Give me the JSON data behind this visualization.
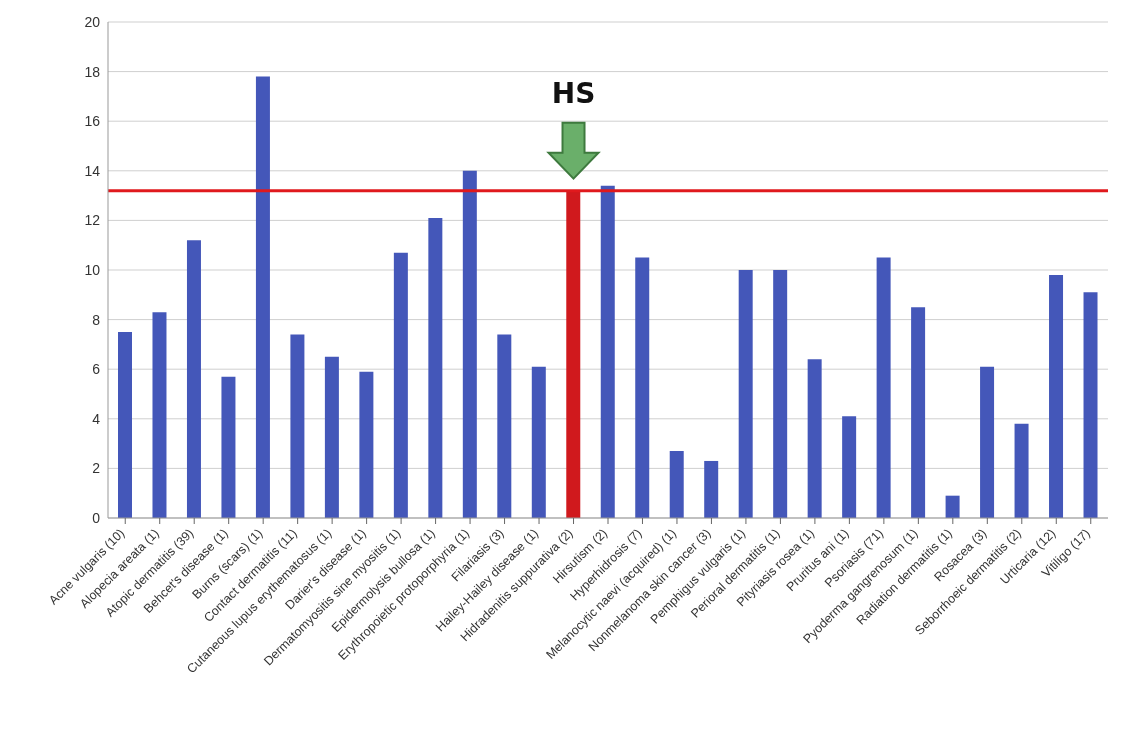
{
  "chart_data": {
    "type": "bar",
    "categories": [
      "Acne vulgaris (10)",
      "Alopecia areata (1)",
      "Atopic dermatitis (39)",
      "Behcet's disease (1)",
      "Burns (scars) (1)",
      "Contact dermatitis (11)",
      "Cutaneous lupus erythematosus (1)",
      "Darier's disease (1)",
      "Dermatomyositis sine myositis (1)",
      "Epidermolysis bullosa (1)",
      "Erythropoietic protoporphyria (1)",
      "Filariasis (3)",
      "Hailey-Hailey disease (1)",
      "Hidradenitis suppurativa (2)",
      "Hirsutism (2)",
      "Hyperhidrosis (7)",
      "Melanocytic naevi (acquired) (1)",
      "Nonmelanoma skin cancer (3)",
      "Pemphigus vulgaris (1)",
      "Perioral dermatitis (1)",
      "Pityriasis rosea (1)",
      "Pruritus ani (1)",
      "Psoriasis (71)",
      "Pyoderma gangrenosum (1)",
      "Radiation dermatitis (1)",
      "Rosacea (3)",
      "Seborrhoeic dermatitis (2)",
      "Urticaria (12)",
      "Vitiligo (17)"
    ],
    "values": [
      7.5,
      8.3,
      11.2,
      5.7,
      17.8,
      7.4,
      6.5,
      5.9,
      10.7,
      12.1,
      14.0,
      7.4,
      6.1,
      13.2,
      13.4,
      10.5,
      2.7,
      2.3,
      10.0,
      10.0,
      6.4,
      4.1,
      10.5,
      8.5,
      0.9,
      6.1,
      3.8,
      9.8,
      9.1
    ],
    "colors": [
      "#4457b9",
      "#4457b9",
      "#4457b9",
      "#4457b9",
      "#4457b9",
      "#4457b9",
      "#4457b9",
      "#4457b9",
      "#4457b9",
      "#4457b9",
      "#4457b9",
      "#4457b9",
      "#4457b9",
      "#d0191d",
      "#4457b9",
      "#4457b9",
      "#4457b9",
      "#4457b9",
      "#4457b9",
      "#4457b9",
      "#4457b9",
      "#4457b9",
      "#4457b9",
      "#4457b9",
      "#4457b9",
      "#4457b9",
      "#4457b9",
      "#4457b9",
      "#4457b9"
    ],
    "ylim": [
      0,
      20
    ],
    "yticks": [
      0,
      2,
      4,
      6,
      8,
      10,
      12,
      14,
      16,
      18,
      20
    ],
    "grid": "y",
    "ref_lines": [
      {
        "axis": "y",
        "value": 13.2,
        "color": "#e0191d"
      }
    ],
    "annotations": [
      {
        "text": "HS",
        "x": "Hidradenitis suppurativa (2)",
        "y": 13.2
      }
    ]
  }
}
